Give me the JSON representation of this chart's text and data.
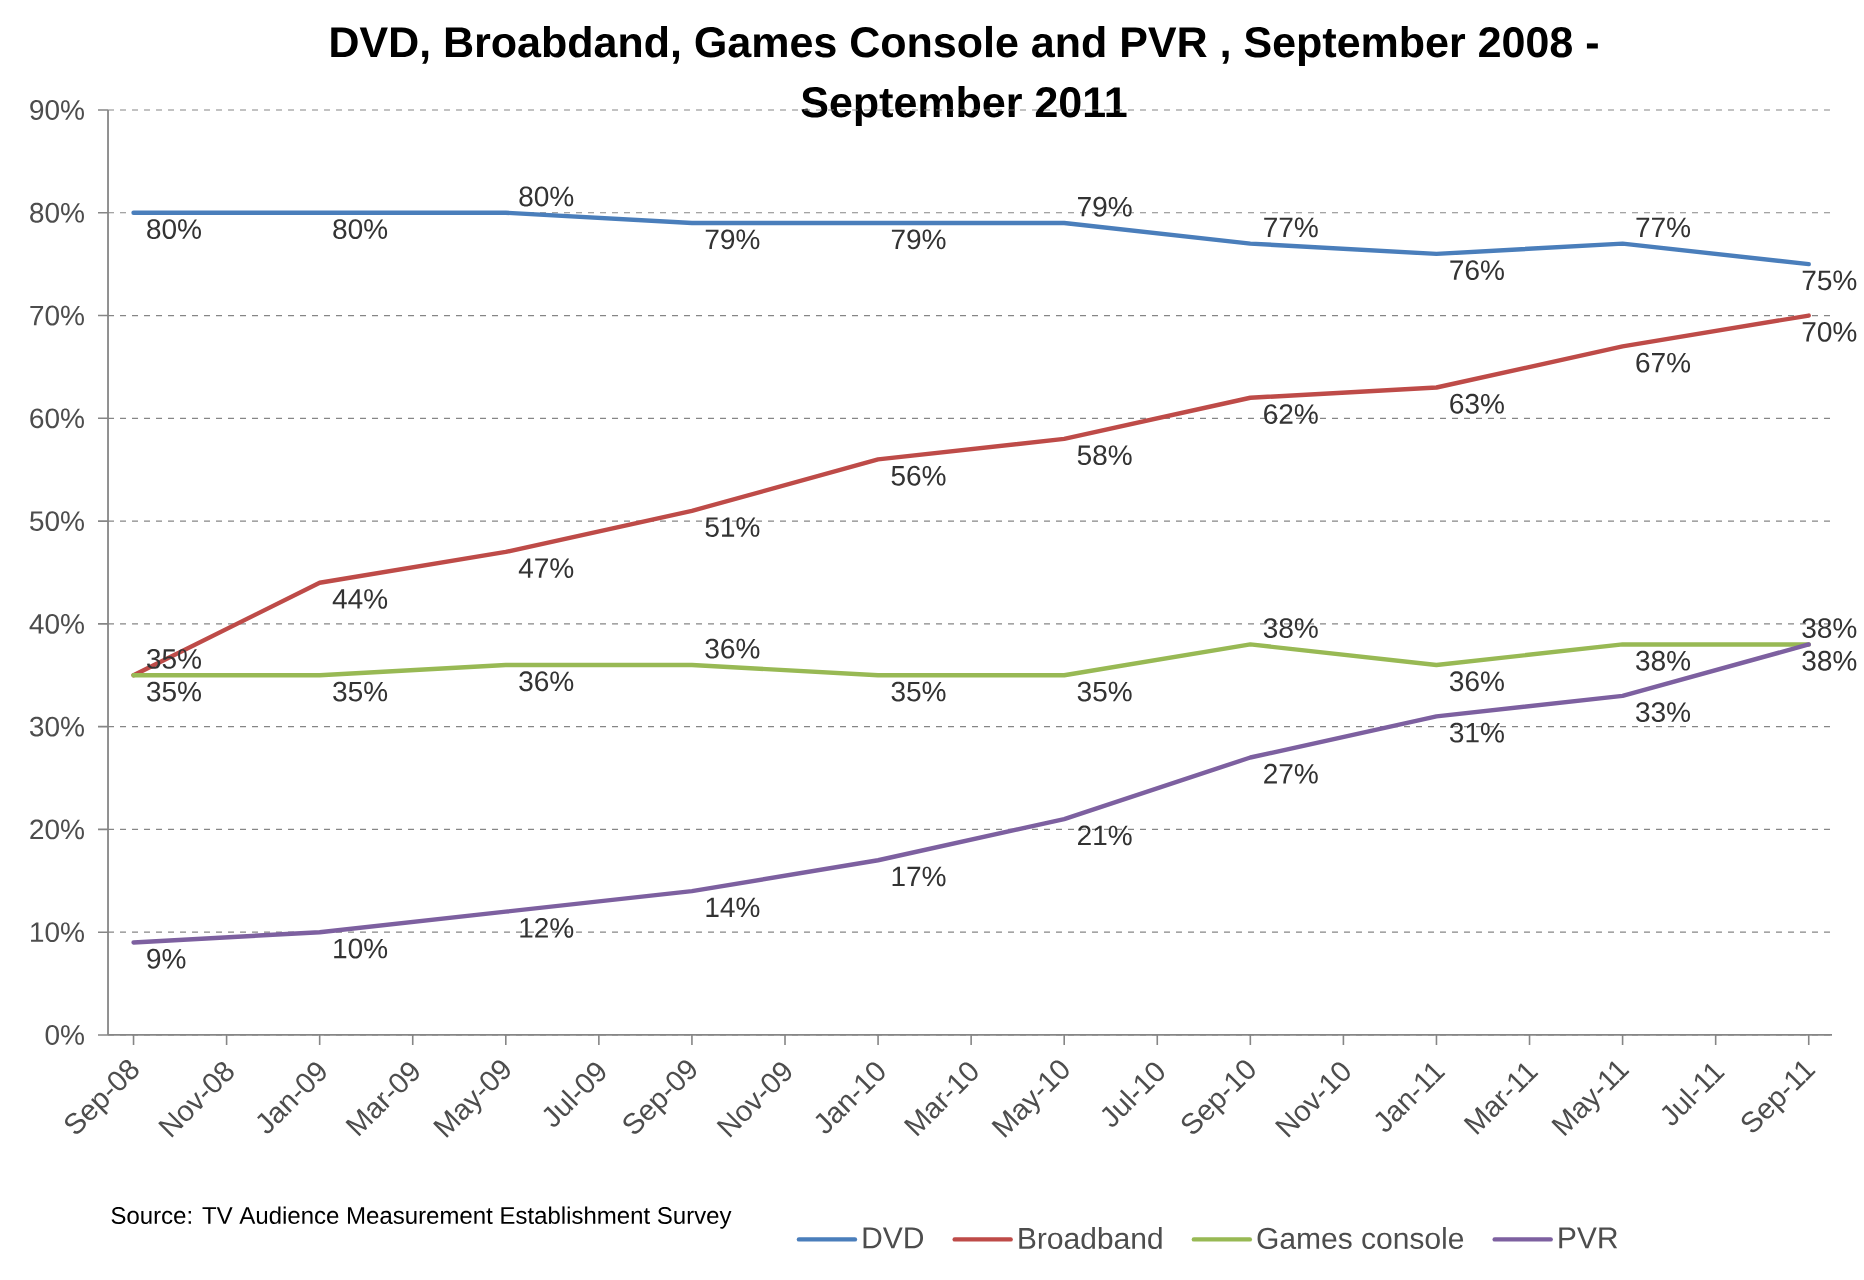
{
  "chart_data": {
    "type": "line",
    "title": "DVD, Broabdand, Games Console and PVR , September 2008 - September 2011",
    "x": [
      "2008-09",
      "2009-01",
      "2009-05",
      "2009-09",
      "2010-01",
      "2010-05",
      "2010-09",
      "2011-01",
      "2011-05",
      "2011-09"
    ],
    "xlim": [
      "2008-08-15",
      "2011-09-16"
    ],
    "xticks": [
      {
        "value": "2008-09",
        "label": "Sep-08"
      },
      {
        "value": "2008-11",
        "label": "Nov-08"
      },
      {
        "value": "2009-01",
        "label": "Jan-09"
      },
      {
        "value": "2009-03",
        "label": "Mar-09"
      },
      {
        "value": "2009-05",
        "label": "May-09"
      },
      {
        "value": "2009-07",
        "label": "Jul-09"
      },
      {
        "value": "2009-09",
        "label": "Sep-09"
      },
      {
        "value": "2009-11",
        "label": "Nov-09"
      },
      {
        "value": "2010-01",
        "label": "Jan-10"
      },
      {
        "value": "2010-03",
        "label": "Mar-10"
      },
      {
        "value": "2010-05",
        "label": "May-10"
      },
      {
        "value": "2010-07",
        "label": "Jul-10"
      },
      {
        "value": "2010-09",
        "label": "Sep-10"
      },
      {
        "value": "2010-11",
        "label": "Nov-10"
      },
      {
        "value": "2011-01",
        "label": "Jan-11"
      },
      {
        "value": "2011-03",
        "label": "Mar-11"
      },
      {
        "value": "2011-05",
        "label": "May-11"
      },
      {
        "value": "2011-07",
        "label": "Jul-11"
      },
      {
        "value": "2011-09",
        "label": "Sep-11"
      }
    ],
    "ylim": [
      0,
      90
    ],
    "yticks": [
      {
        "value": 0,
        "label": "0%"
      },
      {
        "value": 10,
        "label": "10%"
      },
      {
        "value": 20,
        "label": "20%"
      },
      {
        "value": 30,
        "label": "30%"
      },
      {
        "value": 40,
        "label": "40%"
      },
      {
        "value": 50,
        "label": "50%"
      },
      {
        "value": 60,
        "label": "60%"
      },
      {
        "value": 70,
        "label": "70%"
      },
      {
        "value": 80,
        "label": "80%"
      },
      {
        "value": 90,
        "label": "90%"
      }
    ],
    "grid": "y",
    "legend": "bottom",
    "series": [
      {
        "name": "DVD",
        "color": "#4a7ebb",
        "values": [
          80,
          80,
          80,
          79,
          79,
          79,
          77,
          76,
          77,
          75
        ],
        "value_labels": [
          "80%",
          "80%",
          "80%",
          "79%",
          "79%",
          "79%",
          "77%",
          "76%",
          "77%",
          "75%"
        ]
      },
      {
        "name": "Broadband",
        "color": "#be4b48",
        "values": [
          35,
          44,
          47,
          51,
          56,
          58,
          62,
          63,
          67,
          70
        ],
        "value_labels": [
          "35%",
          "44%",
          "47%",
          "51%",
          "56%",
          "58%",
          "62%",
          "63%",
          "67%",
          "70%"
        ]
      },
      {
        "name": "Games console",
        "color": "#98b954",
        "values": [
          35,
          35,
          36,
          36,
          35,
          35,
          38,
          36,
          38,
          38
        ],
        "value_labels": [
          "35%",
          "35%",
          "36%",
          "36%",
          "35%",
          "35%",
          "38%",
          "36%",
          "38%",
          "38%"
        ]
      },
      {
        "name": "PVR",
        "color": "#7d60a0",
        "values": [
          9,
          10,
          12,
          14,
          17,
          21,
          27,
          31,
          33,
          38
        ],
        "value_labels": [
          "9%",
          "10%",
          "12%",
          "14%",
          "17%",
          "21%",
          "27%",
          "31%",
          "33%",
          "38%"
        ]
      }
    ],
    "annotations": [
      "Source: TV Audience Measurement Establishment Survey"
    ]
  }
}
